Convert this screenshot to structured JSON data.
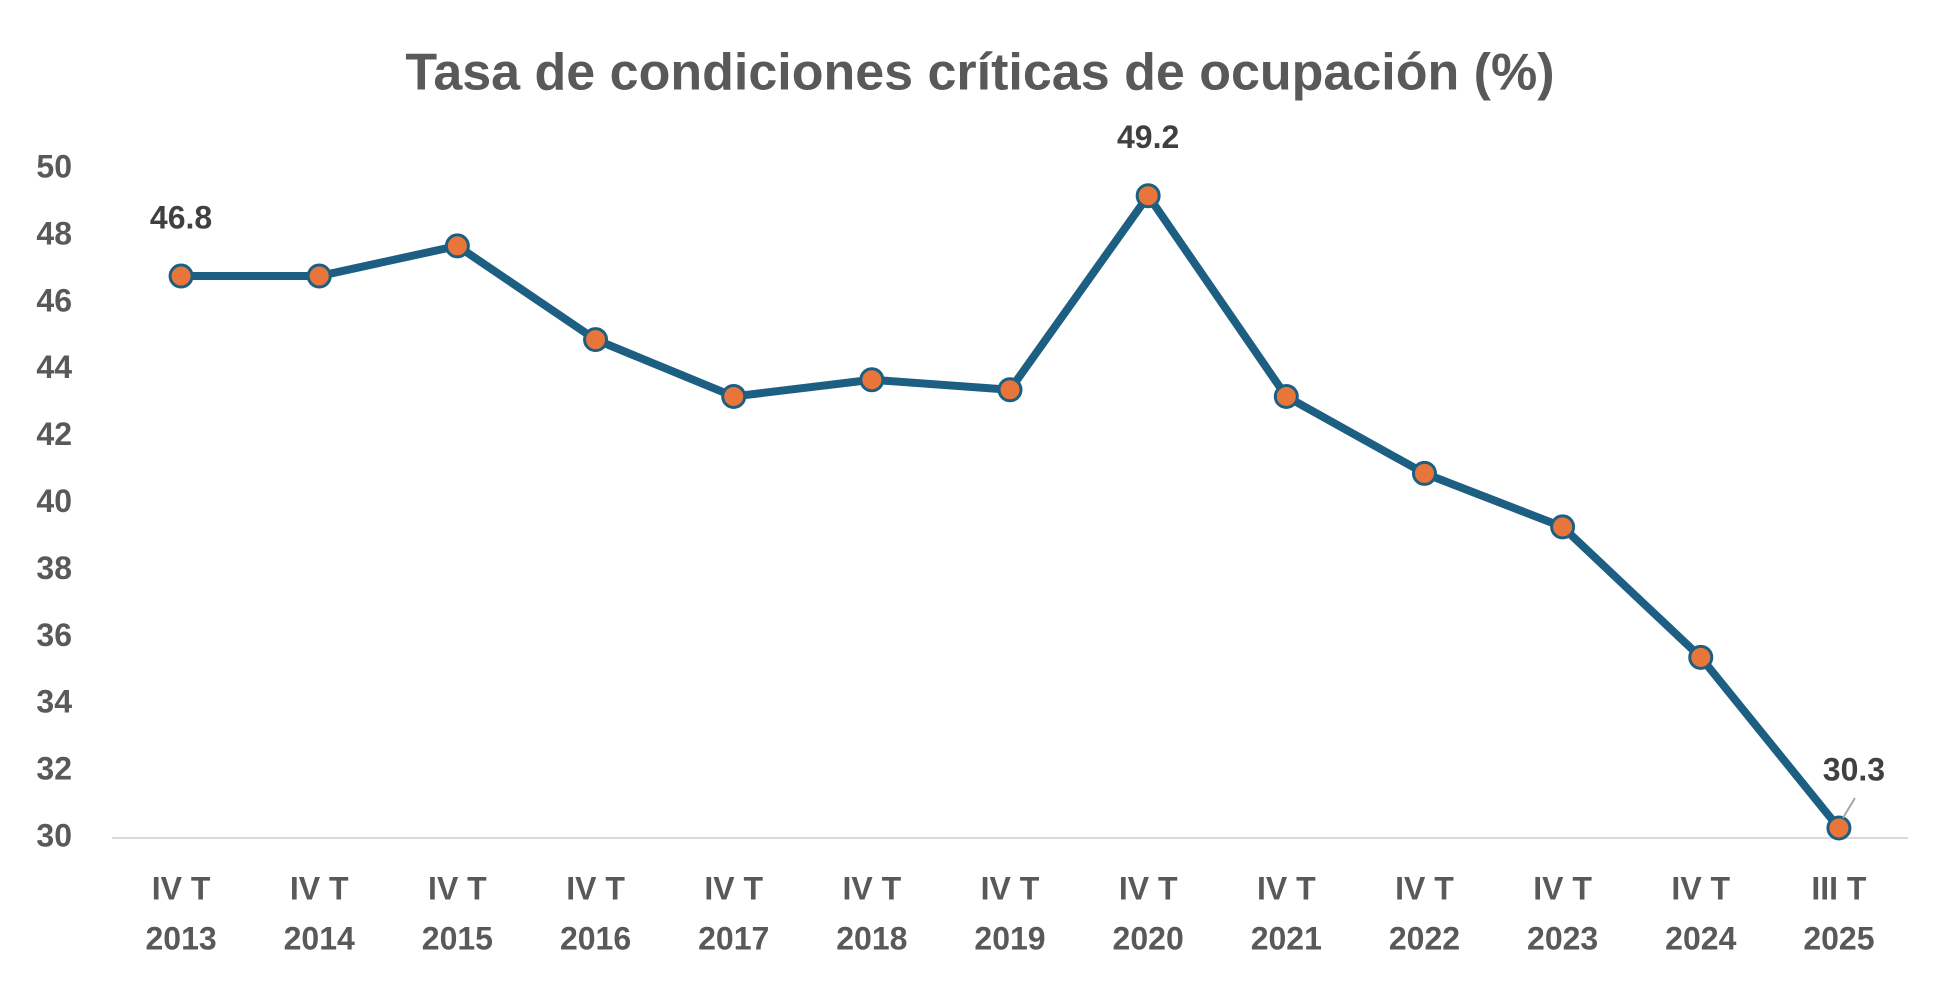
{
  "chart_data": {
    "type": "line",
    "title": "Tasa de condiciones críticas de ocupación (%)",
    "categories": [
      [
        "IV T",
        "2013"
      ],
      [
        "IV T",
        "2014"
      ],
      [
        "IV T",
        "2015"
      ],
      [
        "IV T",
        "2016"
      ],
      [
        "IV T",
        "2017"
      ],
      [
        "IV T",
        "2018"
      ],
      [
        "IV T",
        "2019"
      ],
      [
        "IV T",
        "2020"
      ],
      [
        "IV T",
        "2021"
      ],
      [
        "IV T",
        "2022"
      ],
      [
        "IV T",
        "2023"
      ],
      [
        "IV T",
        "2024"
      ],
      [
        "III T",
        "2025"
      ]
    ],
    "values": [
      46.8,
      46.8,
      47.7,
      44.9,
      43.2,
      43.7,
      43.4,
      49.2,
      43.2,
      40.9,
      39.3,
      35.4,
      30.3
    ],
    "color": "#1d5f83",
    "marker_color": "#e8763a",
    "labeled_points": [
      0,
      7,
      12
    ],
    "ylim": [
      30,
      50
    ],
    "yticks": [
      30,
      32,
      34,
      36,
      38,
      40,
      42,
      44,
      46,
      48,
      50
    ],
    "grid": false
  }
}
